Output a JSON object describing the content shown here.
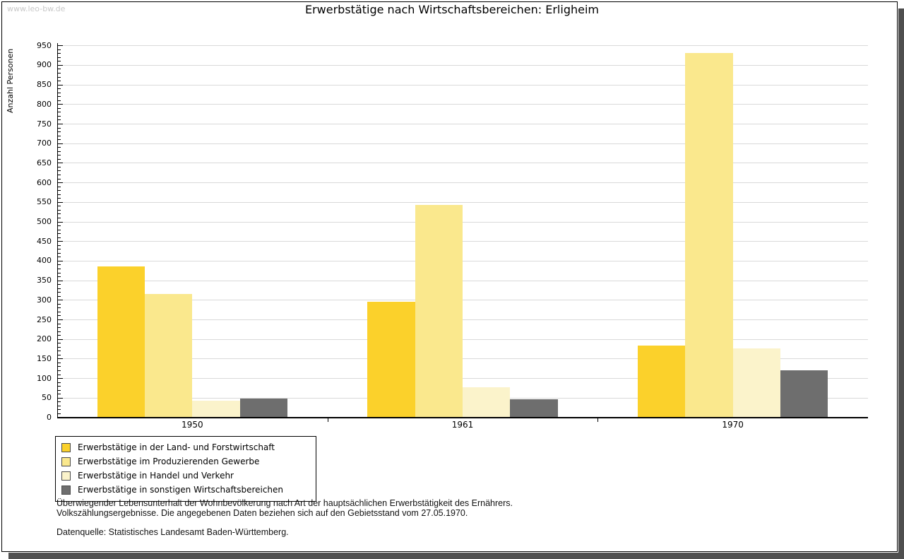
{
  "page": {
    "watermark": "www.leo-bw.de"
  },
  "chart_data": {
    "type": "bar",
    "title": "Erwerbstätige nach Wirtschaftsbereichen: Erligheim",
    "xlabel": "",
    "ylabel": "Anzahl Personen",
    "categories": [
      "1950",
      "1961",
      "1970"
    ],
    "series": [
      {
        "name": "Erwerbstätige in der Land- und Forstwirtschaft",
        "color": "#fbd12b",
        "values": [
          385,
          295,
          182
        ]
      },
      {
        "name": "Erwerbstätige im Produzierenden Gewerbe",
        "color": "#fae88d",
        "values": [
          315,
          542,
          930
        ]
      },
      {
        "name": "Erwerbstätige in Handel und Verkehr",
        "color": "#fbf3cb",
        "values": [
          42,
          75,
          175
        ]
      },
      {
        "name": "Erwerbstätige in sonstigen Wirtschaftsbereichen",
        "color": "#6e6e6e",
        "values": [
          47,
          45,
          120
        ]
      }
    ],
    "ylim": [
      0,
      950
    ],
    "ytick_step": 50,
    "minor_tick_step": 10,
    "grid": true,
    "gridline_color": "#d9d9d9",
    "legend_position": "bottom-left"
  },
  "footer": {
    "note_line1": "Überwiegender Lebensunterhalt der Wohnbevölkerung nach Art der hauptsächlichen Erwerbstätigkeit des Ernährers.",
    "note_line2": "Volkszählungsergebnisse. Die angegebenen Daten beziehen sich auf den Gebietsstand vom 27.05.1970.",
    "source": "Datenquelle: Statistisches Landesamt Baden-Württemberg."
  }
}
